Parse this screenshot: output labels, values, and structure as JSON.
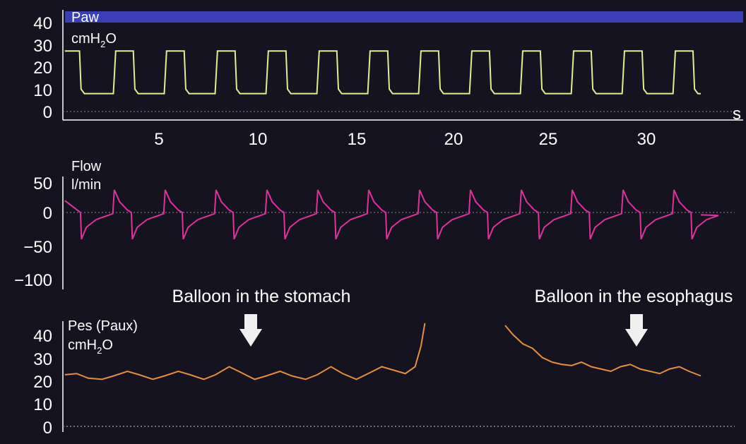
{
  "colors": {
    "background": "#14131f",
    "paw_trace": "#e6ec8c",
    "flow_trace": "#e0329e",
    "pes_trace": "#e88d3a",
    "top_band": "#3a3fb8",
    "baseline": "#8a8c94"
  },
  "chart_data": [
    {
      "type": "line",
      "name": "Paw",
      "label": "Paw",
      "unit_prefix": "cmH",
      "unit_sub": "2",
      "unit_suffix": "O",
      "xlabel": "s",
      "x_ticks": [
        5,
        10,
        15,
        20,
        25,
        30
      ],
      "xlim": [
        0,
        34
      ],
      "y_ticks": [
        "40",
        "30",
        "20",
        "10",
        "0"
      ],
      "ylim": [
        0,
        42
      ],
      "pattern": {
        "period_s": 2.6,
        "start_s": 0.1,
        "end_s": 32.6,
        "high": 27,
        "low": 8,
        "insp_s": 0.9
      }
    },
    {
      "type": "line",
      "name": "Flow",
      "label": "Flow",
      "unit": "l/min",
      "y_ticks": [
        "50",
        "0",
        "−50",
        "−100"
      ],
      "ylim": [
        -115,
        60
      ],
      "pattern": {
        "period_s": 2.6,
        "peak_insp": 38,
        "peak_exp": -45
      }
    },
    {
      "type": "line",
      "name": "Pes (Paux)",
      "label": "Pes (Paux)",
      "unit_prefix": "cmH",
      "unit_sub": "2",
      "unit_suffix": "O",
      "y_ticks": [
        "40",
        "30",
        "20",
        "10",
        "0"
      ],
      "ylim": [
        0,
        46
      ],
      "segments": [
        {
          "name": "stomach",
          "x": [
            0.1,
            0.7,
            1.3,
            2.0,
            2.6,
            3.3,
            3.9,
            4.6,
            5.2,
            5.9,
            6.5,
            7.2,
            7.8,
            8.5,
            9.1,
            9.8,
            10.4,
            11.1,
            11.7,
            12.4,
            13.0,
            13.7,
            14.3,
            15.0,
            15.6,
            16.3,
            16.9,
            17.5,
            18.0,
            18.3,
            18.5
          ],
          "y": [
            22.5,
            23,
            21,
            20.5,
            22,
            24,
            22.5,
            20.5,
            22,
            24,
            22.5,
            20.5,
            22.5,
            26,
            23.5,
            20.5,
            22,
            24,
            22,
            20.5,
            22.5,
            26,
            23,
            20.5,
            23,
            26,
            24.5,
            23,
            26,
            35,
            45
          ]
        },
        {
          "name": "esophagus",
          "x": [
            22.6,
            23.0,
            23.5,
            24.0,
            24.5,
            25.0,
            25.5,
            26.0,
            26.5,
            27.0,
            27.5,
            28.0,
            28.5,
            29.0,
            29.5,
            30.0,
            30.5,
            31.0,
            31.5,
            32.0,
            32.6
          ],
          "y": [
            44,
            40,
            36,
            34,
            30,
            28,
            27,
            26.5,
            28,
            26,
            25,
            24,
            26,
            27,
            25,
            24,
            23,
            25,
            26,
            24,
            22
          ]
        }
      ]
    }
  ],
  "annotations": {
    "stomach_text": "Balloon in the stomach",
    "esophagus_text": "Balloon in the esophagus"
  }
}
